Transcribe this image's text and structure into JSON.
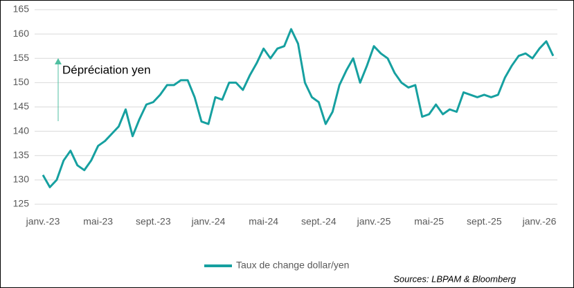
{
  "chart_data": {
    "type": "line",
    "annotation": "Dépréciation yen",
    "source": "Sources: LBPAM & Bloomberg",
    "categories": [
      "janv.-23",
      null,
      null,
      null,
      null,
      null,
      null,
      null,
      "mai-23",
      null,
      null,
      null,
      null,
      null,
      null,
      null,
      "sept.-23",
      null,
      null,
      null,
      null,
      null,
      null,
      null,
      "janv.-24",
      null,
      null,
      null,
      null,
      null,
      null,
      null,
      "mai-24",
      null,
      null,
      null,
      null,
      null,
      null,
      null,
      "sept.-24",
      null,
      null,
      null,
      null,
      null,
      null,
      null,
      "janv.-25",
      null,
      null,
      null,
      null,
      null,
      null,
      null,
      "mai-25",
      null,
      null,
      null,
      null,
      null,
      null,
      null,
      "sept.-25",
      null,
      null,
      null,
      null,
      null,
      null,
      null,
      "janv.-26",
      null,
      null
    ],
    "series": [
      {
        "name": "Taux de change dollar/yen",
        "color": "#16a0a0",
        "values": [
          131,
          128.5,
          130,
          134,
          136,
          133,
          132,
          134,
          137,
          138,
          139.5,
          141,
          144.5,
          139,
          142.5,
          145.5,
          146,
          147.5,
          149.5,
          149.5,
          150.5,
          150.5,
          147,
          142,
          141.5,
          147,
          146.5,
          150,
          150,
          148.5,
          151.5,
          154,
          157,
          155,
          157,
          157.5,
          161,
          158,
          150,
          147,
          146,
          141.5,
          144,
          149.5,
          152.5,
          155,
          150,
          153.5,
          157.5,
          156,
          155,
          152,
          150,
          149,
          149.5,
          143,
          143.5,
          145.5,
          143.5,
          144.5,
          144,
          148,
          147.5,
          147,
          147.5,
          147,
          147.5,
          151,
          153.5,
          155.5,
          156,
          155,
          157,
          158.5,
          155.5
        ]
      }
    ],
    "ylim": [
      125,
      165
    ],
    "yticks": [
      125,
      130,
      135,
      140,
      145,
      150,
      155,
      160,
      165
    ],
    "grid": true,
    "legend": "bottom"
  }
}
